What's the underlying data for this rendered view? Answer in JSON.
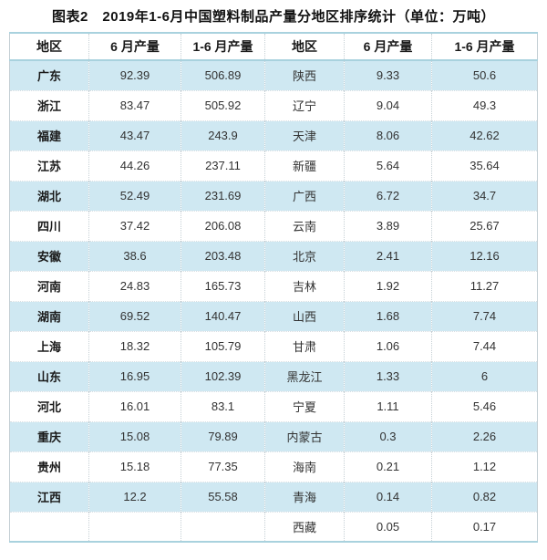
{
  "title": "图表2　2019年1-6月中国塑料制品产量分地区排序统计（单位：万吨）",
  "table": {
    "headers": [
      "地区",
      "6 月产量",
      "1-6 月产量",
      "地区",
      "6 月产量",
      "1-6 月产量"
    ],
    "rows": [
      [
        "广东",
        "92.39",
        "506.89",
        "陕西",
        "9.33",
        "50.6"
      ],
      [
        "浙江",
        "83.47",
        "505.92",
        "辽宁",
        "9.04",
        "49.3"
      ],
      [
        "福建",
        "43.47",
        "243.9",
        "天津",
        "8.06",
        "42.62"
      ],
      [
        "江苏",
        "44.26",
        "237.11",
        "新疆",
        "5.64",
        "35.64"
      ],
      [
        "湖北",
        "52.49",
        "231.69",
        "广西",
        "6.72",
        "34.7"
      ],
      [
        "四川",
        "37.42",
        "206.08",
        "云南",
        "3.89",
        "25.67"
      ],
      [
        "安徽",
        "38.6",
        "203.48",
        "北京",
        "2.41",
        "12.16"
      ],
      [
        "河南",
        "24.83",
        "165.73",
        "吉林",
        "1.92",
        "11.27"
      ],
      [
        "湖南",
        "69.52",
        "140.47",
        "山西",
        "1.68",
        "7.74"
      ],
      [
        "上海",
        "18.32",
        "105.79",
        "甘肃",
        "1.06",
        "7.44"
      ],
      [
        "山东",
        "16.95",
        "102.39",
        "黑龙江",
        "1.33",
        "6"
      ],
      [
        "河北",
        "16.01",
        "83.1",
        "宁夏",
        "1.11",
        "5.46"
      ],
      [
        "重庆",
        "15.08",
        "79.89",
        "内蒙古",
        "0.3",
        "2.26"
      ],
      [
        "贵州",
        "15.18",
        "77.35",
        "海南",
        "0.21",
        "1.12"
      ],
      [
        "江西",
        "12.2",
        "55.58",
        "青海",
        "0.14",
        "0.82"
      ],
      [
        "",
        "",
        "",
        "西藏",
        "0.05",
        "0.17"
      ]
    ]
  },
  "colors": {
    "row_stripe": "#cfe8f2",
    "accent_border": "#a9d2de",
    "cell_divider": "#c6d0d5",
    "text": "#333333",
    "title_text": "#111111"
  },
  "chart_data": {
    "type": "table",
    "title": "图表2　2019年1-6月中国塑料制品产量分地区排序统计（单位：万吨）",
    "unit": "万吨",
    "columns": [
      "地区",
      "6月产量",
      "1-6月产量"
    ],
    "records": [
      {
        "region": "广东",
        "june": 92.39,
        "jan_jun": 506.89
      },
      {
        "region": "浙江",
        "june": 83.47,
        "jan_jun": 505.92
      },
      {
        "region": "福建",
        "june": 43.47,
        "jan_jun": 243.9
      },
      {
        "region": "江苏",
        "june": 44.26,
        "jan_jun": 237.11
      },
      {
        "region": "湖北",
        "june": 52.49,
        "jan_jun": 231.69
      },
      {
        "region": "四川",
        "june": 37.42,
        "jan_jun": 206.08
      },
      {
        "region": "安徽",
        "june": 38.6,
        "jan_jun": 203.48
      },
      {
        "region": "河南",
        "june": 24.83,
        "jan_jun": 165.73
      },
      {
        "region": "湖南",
        "june": 69.52,
        "jan_jun": 140.47
      },
      {
        "region": "上海",
        "june": 18.32,
        "jan_jun": 105.79
      },
      {
        "region": "山东",
        "june": 16.95,
        "jan_jun": 102.39
      },
      {
        "region": "河北",
        "june": 16.01,
        "jan_jun": 83.1
      },
      {
        "region": "重庆",
        "june": 15.08,
        "jan_jun": 79.89
      },
      {
        "region": "贵州",
        "june": 15.18,
        "jan_jun": 77.35
      },
      {
        "region": "江西",
        "june": 12.2,
        "jan_jun": 55.58
      },
      {
        "region": "陕西",
        "june": 9.33,
        "jan_jun": 50.6
      },
      {
        "region": "辽宁",
        "june": 9.04,
        "jan_jun": 49.3
      },
      {
        "region": "天津",
        "june": 8.06,
        "jan_jun": 42.62
      },
      {
        "region": "新疆",
        "june": 5.64,
        "jan_jun": 35.64
      },
      {
        "region": "广西",
        "june": 6.72,
        "jan_jun": 34.7
      },
      {
        "region": "云南",
        "june": 3.89,
        "jan_jun": 25.67
      },
      {
        "region": "北京",
        "june": 2.41,
        "jan_jun": 12.16
      },
      {
        "region": "吉林",
        "june": 1.92,
        "jan_jun": 11.27
      },
      {
        "region": "山西",
        "june": 1.68,
        "jan_jun": 7.74
      },
      {
        "region": "甘肃",
        "june": 1.06,
        "jan_jun": 7.44
      },
      {
        "region": "黑龙江",
        "june": 1.33,
        "jan_jun": 6
      },
      {
        "region": "宁夏",
        "june": 1.11,
        "jan_jun": 5.46
      },
      {
        "region": "内蒙古",
        "june": 0.3,
        "jan_jun": 2.26
      },
      {
        "region": "海南",
        "june": 0.21,
        "jan_jun": 1.12
      },
      {
        "region": "青海",
        "june": 0.14,
        "jan_jun": 0.82
      },
      {
        "region": "西藏",
        "june": 0.05,
        "jan_jun": 0.17
      }
    ]
  }
}
